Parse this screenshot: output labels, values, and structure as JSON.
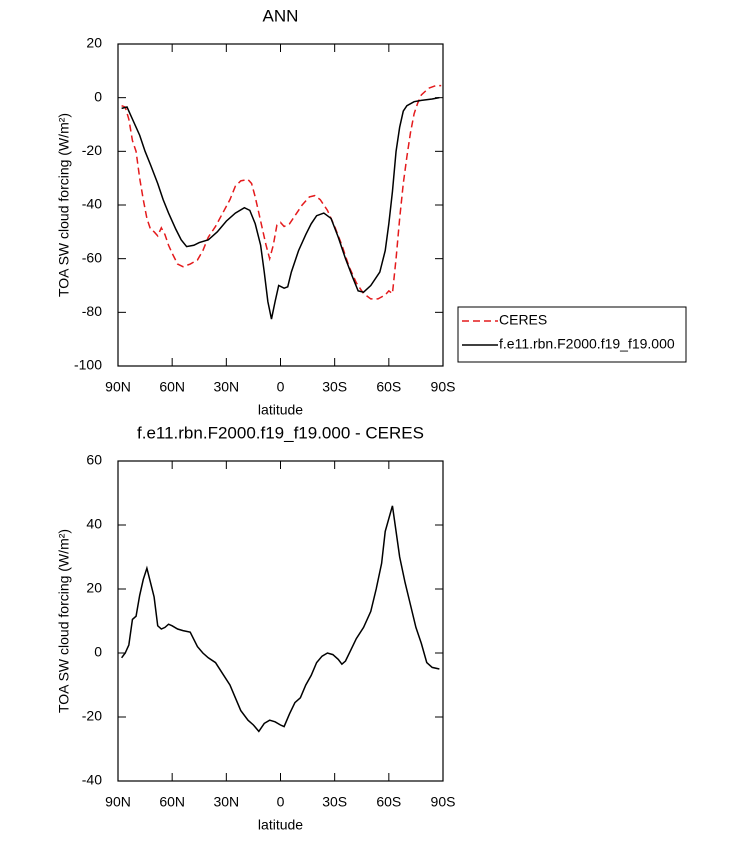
{
  "chart_data": [
    {
      "type": "line",
      "title": "ANN",
      "xlabel": "latitude",
      "ylabel": "TOA SW cloud forcing (W/m²)",
      "xlim": [
        90,
        -90
      ],
      "ylim": [
        -100,
        20
      ],
      "xticks": [
        {
          "value": 90,
          "label": "90N"
        },
        {
          "value": 60,
          "label": "60N"
        },
        {
          "value": 30,
          "label": "30N"
        },
        0,
        {
          "value": -30,
          "label": "30S"
        },
        {
          "value": -60,
          "label": "60S"
        },
        {
          "value": -90,
          "label": "90S"
        }
      ],
      "yticks": [
        -100,
        -80,
        -60,
        -40,
        -20,
        0,
        20
      ],
      "legend": "outside right",
      "series": [
        {
          "name": "CERES",
          "color": "#e41a1c",
          "dash": true,
          "x": [
            88,
            86,
            84,
            82,
            80,
            78,
            76,
            74,
            72,
            70,
            68,
            66,
            64,
            62,
            60,
            57,
            54,
            50,
            46,
            43,
            40,
            36,
            32,
            28,
            25,
            22,
            18,
            16,
            14,
            11,
            8,
            6,
            4,
            2,
            0,
            -2,
            -5,
            -8,
            -12,
            -16,
            -19,
            -22,
            -26,
            -30,
            -34,
            -38,
            -42,
            -46,
            -50,
            -54,
            -58,
            -60,
            -62,
            -64,
            -66,
            -68,
            -70,
            -72,
            -74,
            -76,
            -78,
            -82,
            -86,
            -89
          ],
          "values": [
            -3,
            -3.5,
            -8,
            -16,
            -20,
            -30,
            -38,
            -45,
            -49,
            -50,
            -51.5,
            -48.5,
            -51,
            -55,
            -58,
            -62,
            -63,
            -62,
            -60.5,
            -57,
            -52,
            -48,
            -43,
            -38,
            -33,
            -31,
            -30.5,
            -32,
            -37,
            -46,
            -55,
            -60,
            -55,
            -47.5,
            -46.5,
            -48,
            -47,
            -44,
            -40,
            -37,
            -36.5,
            -38,
            -42,
            -48,
            -55,
            -63,
            -69,
            -73,
            -75,
            -75,
            -73.5,
            -72,
            -73,
            -60,
            -45,
            -32,
            -22,
            -13,
            -6,
            -2,
            1,
            3.5,
            4.5,
            4.5
          ]
        },
        {
          "name": "f.e11.rbn.F2000.f19_f19.000",
          "color": "#000000",
          "dash": false,
          "x": [
            88,
            85,
            82,
            78,
            75,
            72,
            68,
            65,
            62,
            58,
            55,
            52,
            48,
            45,
            40,
            35,
            30,
            25,
            20,
            17,
            14,
            11,
            9,
            7,
            5,
            3,
            1,
            -2,
            -4,
            -6,
            -10,
            -14,
            -17,
            -20,
            -24,
            -28,
            -32,
            -36,
            -40,
            -43,
            -46,
            -50,
            -55,
            -58,
            -60,
            -62,
            -64,
            -66,
            -68,
            -70,
            -74,
            -78,
            -84,
            -88
          ],
          "values": [
            -4,
            -3.5,
            -8,
            -14,
            -20,
            -25,
            -32,
            -38,
            -43,
            -49,
            -53,
            -55.5,
            -55,
            -54,
            -53,
            -50,
            -46,
            -43,
            -41,
            -42,
            -47,
            -55,
            -65,
            -76,
            -82.5,
            -76,
            -70,
            -71,
            -70.5,
            -65,
            -57,
            -51,
            -47,
            -44,
            -43,
            -45,
            -52,
            -60,
            -67,
            -72,
            -72.5,
            -70,
            -65,
            -57,
            -47,
            -35,
            -20,
            -11,
            -5,
            -3,
            -1.5,
            -1,
            -0.5,
            0
          ]
        }
      ]
    },
    {
      "type": "line",
      "title": "f.e11.rbn.F2000.f19_f19.000 - CERES",
      "xlabel": "latitude",
      "ylabel": "TOA SW cloud forcing (W/m²)",
      "xlim": [
        90,
        -90
      ],
      "ylim": [
        -40,
        60
      ],
      "xticks": [
        {
          "value": 90,
          "label": "90N"
        },
        {
          "value": 60,
          "label": "60N"
        },
        {
          "value": 30,
          "label": "30N"
        },
        0,
        {
          "value": -30,
          "label": "30S"
        },
        {
          "value": -60,
          "label": "60S"
        },
        {
          "value": -90,
          "label": "90S"
        }
      ],
      "yticks": [
        -40,
        -20,
        0,
        20,
        40,
        60
      ],
      "color": "#000000",
      "x": [
        88,
        86,
        84,
        82,
        80,
        78,
        76,
        74,
        72,
        70,
        68,
        66,
        64,
        62,
        60,
        57,
        54,
        50,
        46,
        43,
        40,
        36,
        32,
        28,
        25,
        22,
        18,
        15,
        12,
        9,
        6,
        3,
        0,
        -2,
        -5,
        -8,
        -11,
        -14,
        -17,
        -20,
        -23,
        -26,
        -29,
        -32,
        -34,
        -36,
        -39,
        -42,
        -46,
        -50,
        -53,
        -56,
        -58,
        -60,
        -62,
        -64,
        -66,
        -69,
        -72,
        -75,
        -78,
        -81,
        -84,
        -88
      ],
      "values": [
        -1.5,
        0,
        2.5,
        10.5,
        11.5,
        18,
        23,
        26.5,
        22,
        17.5,
        8.5,
        7.5,
        8,
        9,
        8.5,
        7.5,
        7,
        6.5,
        2,
        0,
        -1.5,
        -3,
        -6.5,
        -10,
        -14,
        -18,
        -21,
        -22.5,
        -24.5,
        -22,
        -21,
        -21.5,
        -22.5,
        -23,
        -19,
        -15.5,
        -14,
        -10,
        -7,
        -3,
        -1,
        0,
        -0.5,
        -2,
        -3.5,
        -2.5,
        1,
        4.5,
        8,
        13,
        20,
        28,
        38,
        42,
        46,
        38,
        30,
        22,
        15,
        8,
        3,
        -3,
        -4.5,
        -5
      ]
    }
  ]
}
